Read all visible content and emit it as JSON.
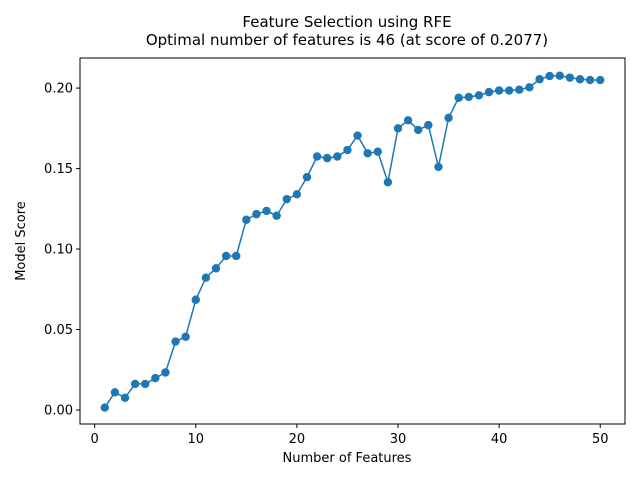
{
  "chart_data": {
    "type": "line",
    "title": "Feature Selection using RFE",
    "subtitle": "Optimal number of features is 46 (at score of 0.2077)",
    "xlabel": "Number of Features",
    "ylabel": "Model Score",
    "xlim": [
      -1.45,
      52.45
    ],
    "ylim": [
      -0.0087,
      0.2187
    ],
    "xticks": [
      0,
      10,
      20,
      30,
      40,
      50
    ],
    "xtick_labels": [
      "0",
      "10",
      "20",
      "30",
      "40",
      "50"
    ],
    "yticks": [
      0.0,
      0.05,
      0.1,
      0.15,
      0.2
    ],
    "ytick_labels": [
      "0.00",
      "0.05",
      "0.10",
      "0.15",
      "0.20"
    ],
    "grid": false,
    "color": "#1f77b4",
    "marker": "circle",
    "x": [
      1,
      2,
      3,
      4,
      5,
      6,
      7,
      8,
      9,
      10,
      11,
      12,
      13,
      14,
      15,
      16,
      17,
      18,
      19,
      20,
      21,
      22,
      23,
      24,
      25,
      26,
      27,
      28,
      29,
      30,
      31,
      32,
      33,
      34,
      35,
      36,
      37,
      38,
      39,
      40,
      41,
      42,
      43,
      44,
      45,
      46,
      47,
      48,
      49,
      50
    ],
    "y": [
      0.0015,
      0.011,
      0.0076,
      0.0162,
      0.0162,
      0.0198,
      0.0233,
      0.0425,
      0.0455,
      0.0685,
      0.0822,
      0.088,
      0.0957,
      0.0957,
      0.1182,
      0.1217,
      0.1237,
      0.1207,
      0.131,
      0.134,
      0.1447,
      0.1575,
      0.1565,
      0.1575,
      0.1615,
      0.1705,
      0.1595,
      0.1605,
      0.1415,
      0.175,
      0.18,
      0.174,
      0.177,
      0.151,
      0.1815,
      0.194,
      0.1945,
      0.1955,
      0.1975,
      0.1985,
      0.1985,
      0.199,
      0.2005,
      0.2055,
      0.2075,
      0.2077,
      0.2065,
      0.2055,
      0.205,
      0.205
    ]
  }
}
